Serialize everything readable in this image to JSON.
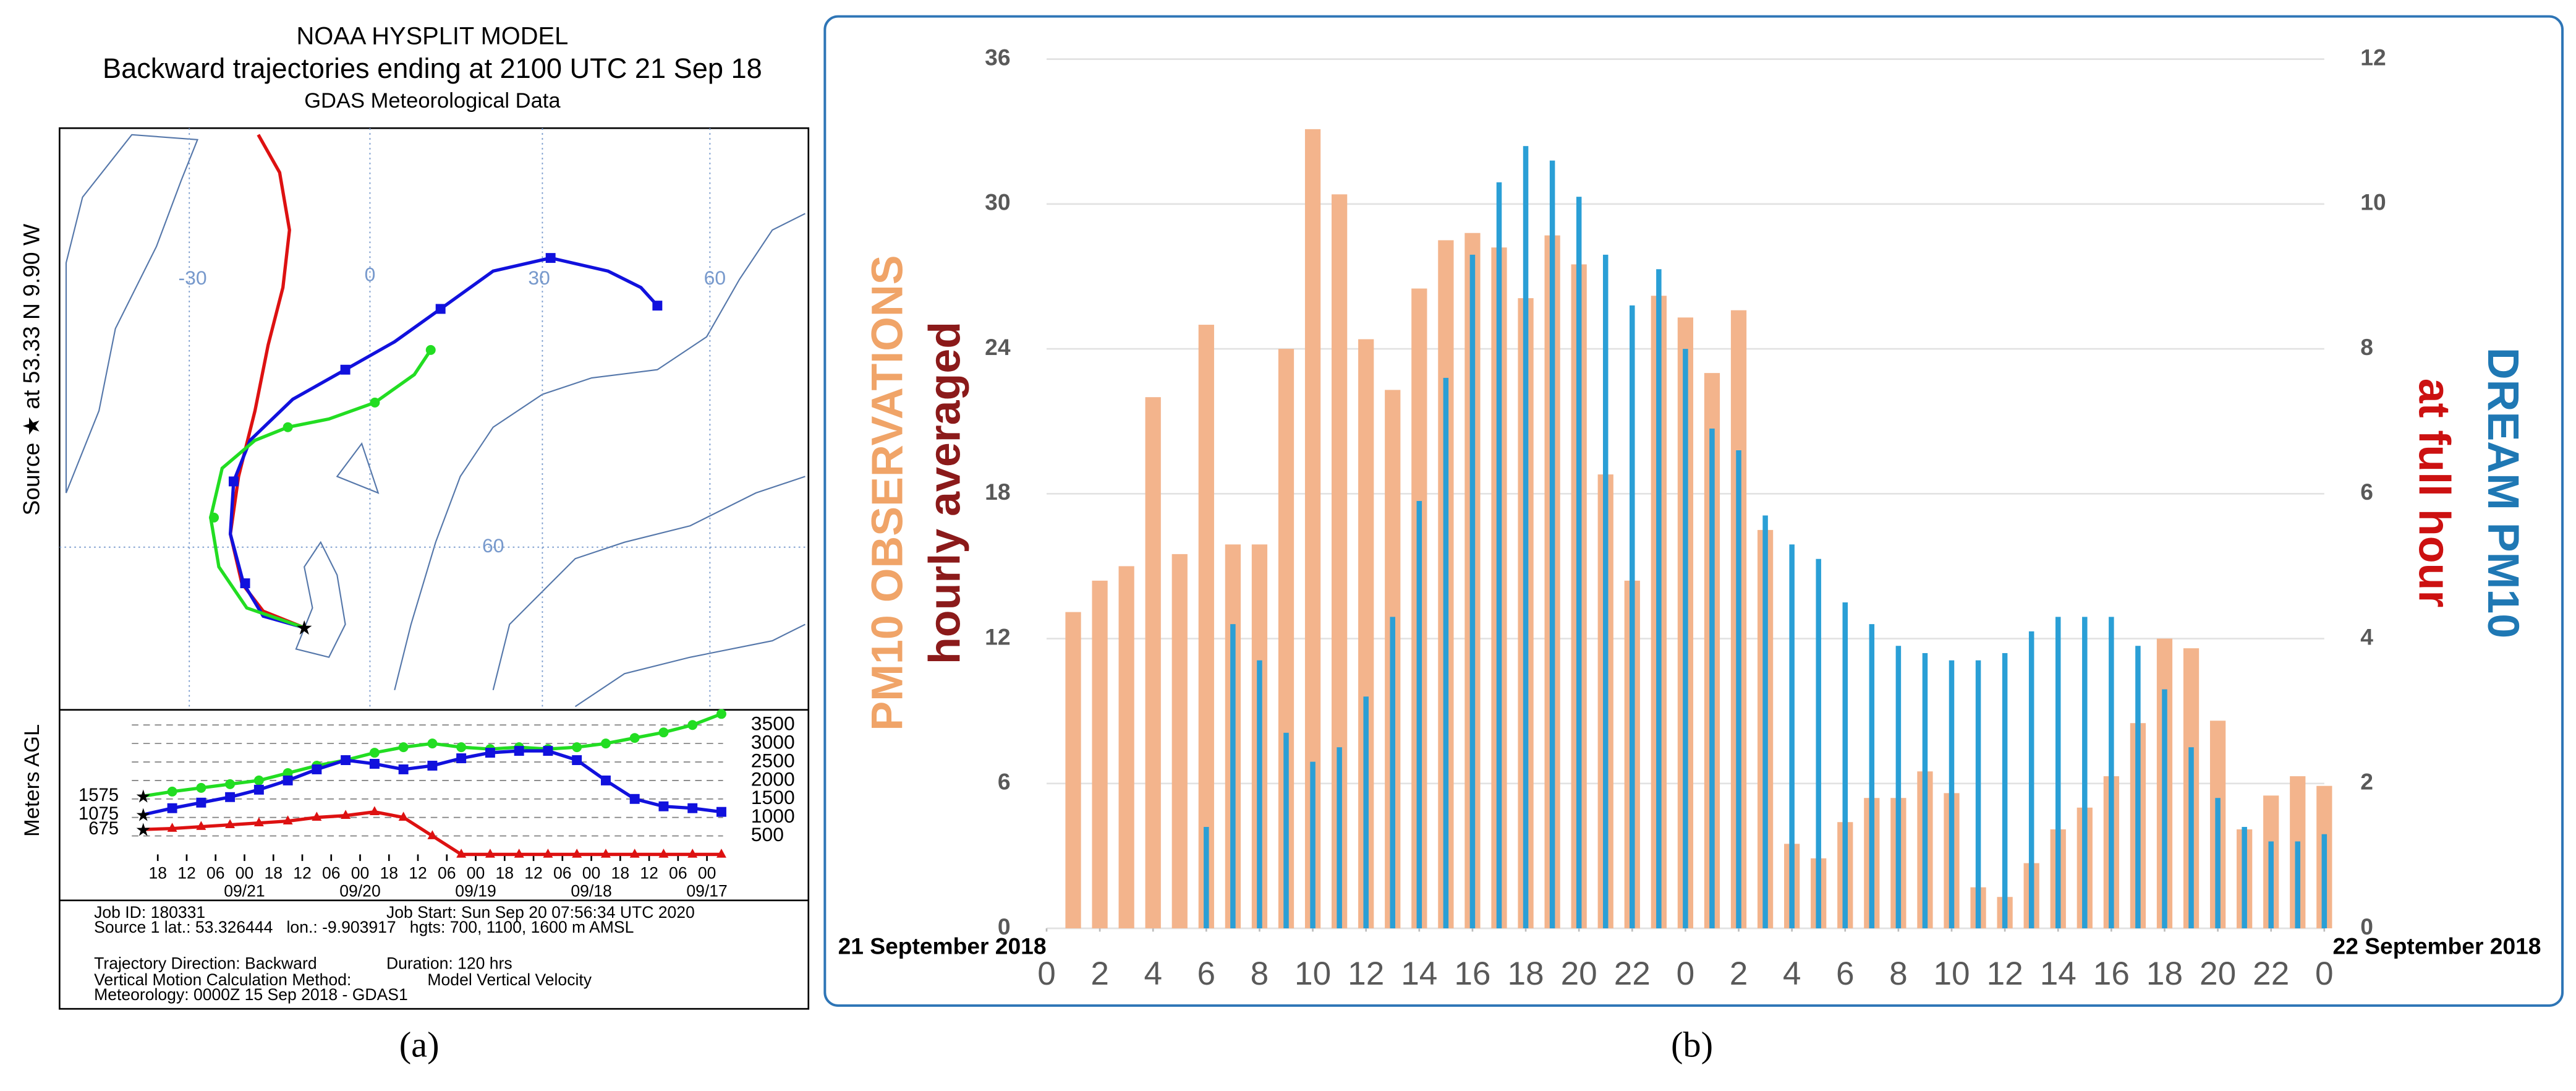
{
  "hysplit": {
    "title": "NOAA HYSPLIT MODEL",
    "subtitle": "Backward trajectories ending at 2100 UTC 21 Sep 18",
    "subtitle2": "GDAS Meteorological Data",
    "source_label": "Source ★ at 53.33 N 9.90 W",
    "map_labels": [
      "-30",
      "0",
      "30",
      "60",
      "60"
    ],
    "info": [
      "Job ID: 180331",
      "Job Start: Sun Sep 20 07:56:34 UTC 2020",
      "Source 1 lat.: 53.326444   lon.: -9.903917   hgts: 700, 1100, 1600 m AMSL",
      "Trajectory Direction: Backward",
      "Duration: 120 hrs",
      "Vertical Motion Calculation Method:",
      "Model Vertical Velocity",
      "Meteorology: 0000Z 15 Sep 2018 - GDAS1"
    ]
  },
  "panel_labels": [
    "(a)",
    "(b)"
  ],
  "chart_data": [
    {
      "type": "line",
      "y_label": "Meters AGL",
      "x": [
        0,
        6,
        12,
        18,
        24,
        30,
        36,
        42,
        48,
        54,
        60,
        66,
        72,
        78,
        84,
        90,
        96,
        102,
        108,
        114,
        120
      ],
      "xlim": [
        0,
        120
      ],
      "xticks": [
        {
          "value": 3,
          "label": "18"
        },
        {
          "value": 9,
          "label": "12"
        },
        {
          "value": 15,
          "label": "06"
        },
        {
          "value": 21,
          "label": "00"
        },
        {
          "value": 27,
          "label": "18"
        },
        {
          "value": 33,
          "label": "12"
        },
        {
          "value": 39,
          "label": "06"
        },
        {
          "value": 45,
          "label": "00"
        },
        {
          "value": 51,
          "label": "18"
        },
        {
          "value": 57,
          "label": "12"
        },
        {
          "value": 63,
          "label": "06"
        },
        {
          "value": 69,
          "label": "00"
        },
        {
          "value": 75,
          "label": "18"
        },
        {
          "value": 81,
          "label": "12"
        },
        {
          "value": 87,
          "label": "06"
        },
        {
          "value": 93,
          "label": "00"
        },
        {
          "value": 99,
          "label": "18"
        },
        {
          "value": 105,
          "label": "12"
        },
        {
          "value": 111,
          "label": "06"
        },
        {
          "value": 117,
          "label": "00"
        }
      ],
      "date_labels": [
        {
          "value": 21,
          "label": "09/21"
        },
        {
          "value": 45,
          "label": "09/20"
        },
        {
          "value": 69,
          "label": "09/19"
        },
        {
          "value": 93,
          "label": "09/18"
        },
        {
          "value": 117,
          "label": "09/17"
        }
      ],
      "ylim": [
        0,
        4000
      ],
      "yticks": [
        500,
        1000,
        1500,
        2000,
        2500,
        3000,
        3500
      ],
      "grid": true,
      "series": [
        {
          "color": "#22dd22",
          "marker": "circle",
          "values": [
            1575,
            1700,
            1800,
            1900,
            2000,
            2200,
            2400,
            2550,
            2750,
            2900,
            3000,
            2900,
            2850,
            2900,
            2850,
            2900,
            3000,
            3150,
            3300,
            3500,
            3800
          ]
        },
        {
          "color": "#1111dd",
          "marker": "square",
          "values": [
            1075,
            1250,
            1400,
            1550,
            1750,
            2000,
            2300,
            2550,
            2450,
            2300,
            2400,
            2600,
            2750,
            2800,
            2800,
            2550,
            2000,
            1500,
            1300,
            1250,
            1150
          ]
        },
        {
          "color": "#dd1111",
          "marker": "triangle",
          "values": [
            675,
            700,
            750,
            800,
            850,
            900,
            1000,
            1050,
            1150,
            1000,
            500,
            0,
            0,
            0,
            0,
            0,
            0,
            0,
            0,
            0,
            0
          ]
        }
      ]
    },
    {
      "type": "bar",
      "y_label": [
        "PM10 OBSERVATIONS",
        "hourly averaged"
      ],
      "y2_label": [
        "DREAM PM10",
        "at full hour"
      ],
      "start_date": "21 September 2018",
      "end_date": "22 September 2018",
      "x": [
        1,
        2,
        3,
        4,
        5,
        6,
        7,
        8,
        9,
        10,
        11,
        12,
        13,
        14,
        15,
        16,
        17,
        18,
        19,
        20,
        21,
        22,
        23,
        24,
        25,
        26,
        27,
        28,
        29,
        30,
        31,
        32,
        33,
        34,
        35,
        36,
        37,
        38,
        39,
        40,
        41,
        42,
        43,
        44,
        45,
        46,
        47,
        48
      ],
      "xlim": [
        0,
        48
      ],
      "xticks": [
        0,
        2,
        4,
        6,
        8,
        10,
        12,
        14,
        16,
        18,
        20,
        22,
        {
          "value": 24,
          "label": "0"
        },
        {
          "value": 26,
          "label": "2"
        },
        {
          "value": 28,
          "label": "4"
        },
        {
          "value": 30,
          "label": "6"
        },
        {
          "value": 32,
          "label": "8"
        },
        {
          "value": 34,
          "label": "10"
        },
        {
          "value": 36,
          "label": "12"
        },
        {
          "value": 38,
          "label": "14"
        },
        {
          "value": 40,
          "label": "16"
        },
        {
          "value": 42,
          "label": "18"
        },
        {
          "value": 44,
          "label": "20"
        },
        {
          "value": 46,
          "label": "22"
        },
        {
          "value": 48,
          "label": "0"
        }
      ],
      "ylim": [
        0,
        36
      ],
      "yticks": [
        0,
        6,
        12,
        18,
        24,
        30,
        36
      ],
      "y2lim": [
        0,
        12
      ],
      "y2ticks": [
        0,
        2,
        4,
        6,
        8,
        10,
        12
      ],
      "grid": true,
      "series": [
        {
          "color": "#f3b48c",
          "values": [
            13.1,
            14.4,
            15.0,
            22.0,
            15.5,
            25.0,
            15.9,
            15.9,
            24.0,
            33.1,
            30.4,
            24.4,
            22.3,
            26.5,
            28.5,
            28.8,
            28.2,
            26.1,
            28.7,
            27.5,
            18.8,
            14.4,
            26.2,
            25.3,
            23.0,
            25.6,
            16.5,
            3.5,
            2.9,
            4.4,
            5.4,
            5.4,
            6.5,
            5.6,
            1.7,
            1.3,
            2.7,
            4.1,
            5.0,
            6.3,
            8.5,
            12.0,
            11.6,
            8.6,
            4.1,
            5.5,
            6.3,
            5.9
          ]
        },
        {
          "color": "#2a9fd6",
          "axis": "y2",
          "values": [
            null,
            null,
            null,
            null,
            null,
            1.4,
            4.2,
            3.7,
            2.7,
            2.3,
            2.5,
            3.2,
            4.3,
            5.9,
            7.6,
            9.3,
            10.3,
            10.8,
            10.6,
            10.1,
            9.3,
            8.6,
            9.1,
            8.0,
            6.9,
            6.6,
            5.7,
            5.3,
            5.1,
            4.5,
            4.2,
            3.9,
            3.8,
            3.7,
            3.7,
            3.8,
            4.1,
            4.3,
            4.3,
            4.3,
            3.9,
            3.3,
            2.5,
            1.8,
            1.4,
            1.2,
            1.2,
            1.3
          ]
        }
      ]
    }
  ]
}
